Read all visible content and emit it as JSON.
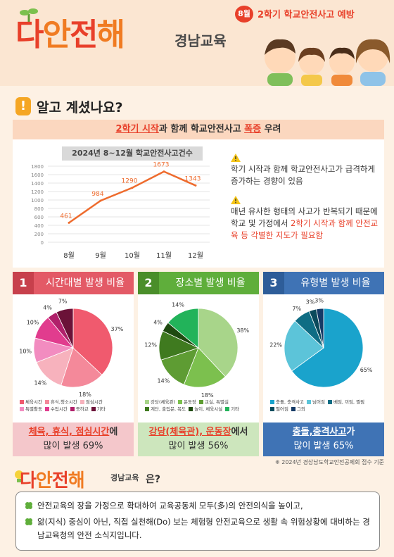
{
  "header": {
    "logo": [
      "다",
      "안",
      "전",
      "해"
    ],
    "logo_sub": "경남교육",
    "month": "8월",
    "campaign": "2학기 학교안전사고 예방"
  },
  "section": {
    "title": "알고 계셨나요?",
    "banner_pre": "2학기 시작",
    "banner_mid": "과 함께 학교안전사고 ",
    "banner_hl": "폭증",
    "banner_post": " 우려"
  },
  "chart_data": [
    {
      "type": "line",
      "title": "2024년 8~12월 학교안전사고건수",
      "categories": [
        "8월",
        "9월",
        "10월",
        "11월",
        "12월"
      ],
      "values": [
        461,
        984,
        1290,
        1673,
        1343
      ],
      "ylim": [
        0,
        1800
      ],
      "yticks": [
        "1800",
        "1600",
        "1400",
        "1200",
        "1000",
        "800",
        "600",
        "400",
        "200",
        "0"
      ],
      "color": "#ee6b2d",
      "grid": true
    },
    {
      "type": "pie",
      "title": "시간대별 발생 비율",
      "labels": [
        "체육시간",
        "휴식,청소시간",
        "점심시간",
        "특별활동",
        "수업시간",
        "등하교",
        "기타"
      ],
      "values": [
        37,
        18,
        14,
        10,
        10,
        4,
        7
      ],
      "colors": [
        "#f05a6e",
        "#f4899a",
        "#f7b2bd",
        "#f28cc0",
        "#e13c8e",
        "#b0206a",
        "#6b1238"
      ]
    },
    {
      "type": "pie",
      "title": "장소별 발생 비율",
      "labels": [
        "강당(체육관)",
        "운동장",
        "교실, 특별실",
        "계단, 출입문, 복도",
        "놀이, 체육시설",
        "기타"
      ],
      "values": [
        38,
        18,
        14,
        12,
        4,
        14
      ],
      "colors": [
        "#a8d58a",
        "#7cc04e",
        "#5e9c33",
        "#3f7a1f",
        "#1f4a10",
        "#22b35a"
      ]
    },
    {
      "type": "pie",
      "title": "유형별 발생 비율",
      "labels": [
        "충돌, 충격사고",
        "넘어짐",
        "베임, 끼임, 찔림",
        "떨어짐",
        "그외"
      ],
      "values": [
        65,
        22,
        7,
        3,
        3
      ],
      "colors": [
        "#1aa3cc",
        "#5cc4d9",
        "#0f6d84",
        "#0a4a5c",
        "#153a66"
      ]
    }
  ],
  "notes": [
    {
      "text": "학기 시작과 함께 학교안전사고가 급격하게 증가하는 경향이 있음"
    },
    {
      "text_pre": "매년 유사한 형태의 사고가 반복되기 때문에 학교 및 가정에서 ",
      "text_red": "2학기 시작과 함께 안전교육 등 각별한 지도가 필요함"
    }
  ],
  "cards": [
    {
      "num": "1",
      "title": "시간대별 발생 비율",
      "foot_hl": "체육, 휴식, 점심시간",
      "foot_post": "에",
      "foot_line2": "많이 발생 69%",
      "color": "#e35a66",
      "foot_bg": "#f4c7cb",
      "hl_color": "#e8402a"
    },
    {
      "num": "2",
      "title": "장소별 발생 비율",
      "foot_hl": "강당(체육관), 운동장",
      "foot_post": "에서",
      "foot_line2": "많이 발생 56%",
      "color": "#5fae3b",
      "foot_bg": "#cde6bd",
      "hl_color": "#e8402a"
    },
    {
      "num": "3",
      "title": "유형별 발생 비율",
      "foot_hl": "충돌,충격사고",
      "foot_post": "가",
      "foot_line2": "많이 발생 65%",
      "color": "#3f73b5",
      "foot_bg": "#c6d6ec",
      "hl_color": "#ffffff"
    }
  ],
  "source": "※ 2024년 경상남도학교안전공제회 접수 기준",
  "bottom": {
    "logo_sub": "경남교육",
    "question": "은?",
    "line1": "안전교육의 장을 가정으로 확대하여 교육공동체 모두(多)의 안전의식을 높이고,",
    "line2": "앎(지식) 중심이 아닌, 직접 실천해(Do) 보는 체험형 안전교육으로 생활 속 위험상황에 대비하는 경남교육청의 안전 소식지입니다."
  }
}
